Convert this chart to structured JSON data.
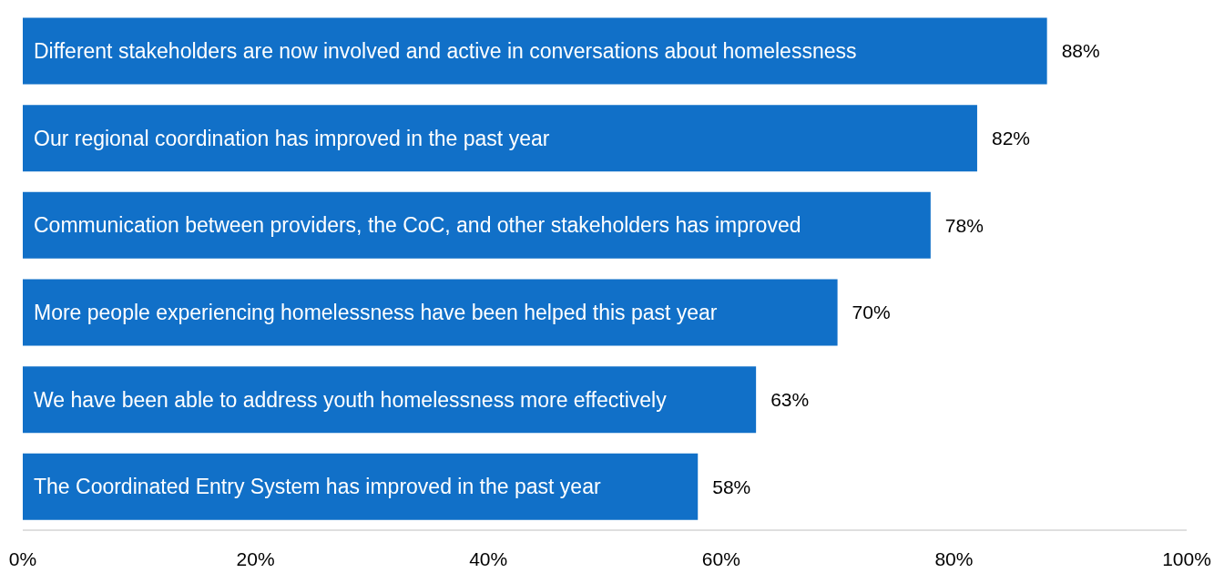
{
  "chart_data": {
    "type": "bar",
    "orientation": "horizontal",
    "categories": [
      "Different stakeholders are now involved and active in conversations about homelessness",
      "Our regional coordination has improved in the past year",
      "Communication between providers, the CoC, and other stakeholders has improved",
      "More people experiencing homelessness have been helped this past year",
      "We have been able to address youth homelessness more effectively",
      "The Coordinated Entry System  has improved in the past year"
    ],
    "values": [
      88,
      82,
      78,
      70,
      63,
      58
    ],
    "value_labels": [
      "88%",
      "82%",
      "78%",
      "70%",
      "63%",
      "58%"
    ],
    "color": "#1170c8",
    "xlim": [
      0,
      100
    ],
    "xticks": [
      {
        "value": 0,
        "label": "0%"
      },
      {
        "value": 20,
        "label": "20%"
      },
      {
        "value": 40,
        "label": "40%"
      },
      {
        "value": 60,
        "label": "60%"
      },
      {
        "value": 80,
        "label": "80%"
      },
      {
        "value": 100,
        "label": "100%"
      }
    ]
  }
}
